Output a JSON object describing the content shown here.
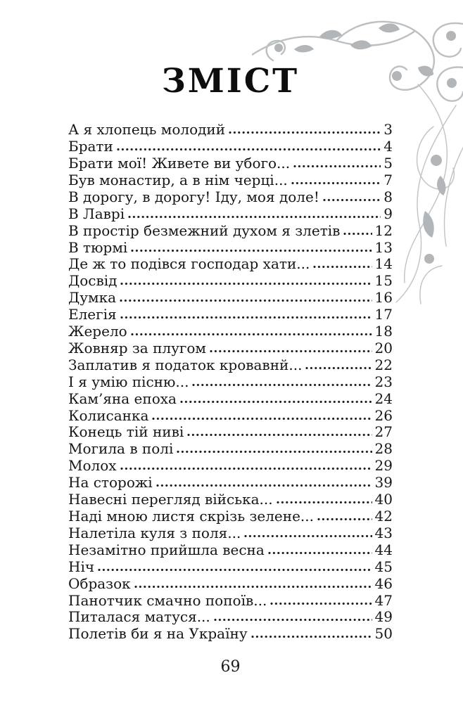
{
  "page": {
    "title": "ЗМІСТ",
    "footer_page_number": "69",
    "ornament": {
      "name": "floral-flourish-ornament",
      "color": "#b3b6b8"
    }
  },
  "toc": {
    "entries": [
      {
        "title": "А я хлопець молодий",
        "page": "3"
      },
      {
        "title": "Брати",
        "page": "4"
      },
      {
        "title": "Брати мої! Живете ви убого...",
        "page": "5"
      },
      {
        "title": "Був монастир, а в нім черці...",
        "page": "7"
      },
      {
        "title": "В дорогу, в дорогу! Іду, моя доле!",
        "page": "8"
      },
      {
        "title": "В Лаврі",
        "page": "9"
      },
      {
        "title": "В простір безмежний духом я злетів",
        "page": "12"
      },
      {
        "title": "В тюрмі",
        "page": "13"
      },
      {
        "title": "Де ж то подівся господар хати...",
        "page": "14"
      },
      {
        "title": "Досвід",
        "page": "15"
      },
      {
        "title": "Думка",
        "page": "16"
      },
      {
        "title": "Елегія",
        "page": "17"
      },
      {
        "title": "Жерело",
        "page": "18"
      },
      {
        "title": "Жовняр за плугом",
        "page": "20"
      },
      {
        "title": "Заплатив я податок кровавнй...",
        "page": "22"
      },
      {
        "title": "І я умію пісню...",
        "page": "23"
      },
      {
        "title": "Кам’яна епоха",
        "page": "24"
      },
      {
        "title": "Колисанка",
        "page": "26"
      },
      {
        "title": "Конець тій ниві",
        "page": "27"
      },
      {
        "title": "Могила в полі",
        "page": "28"
      },
      {
        "title": "Молох",
        "page": "29"
      },
      {
        "title": "На сторожі",
        "page": "39"
      },
      {
        "title": "Навесні перегляд війська...",
        "page": "40"
      },
      {
        "title": "Наді мною листя скрізь зелене...",
        "page": "42"
      },
      {
        "title": "Налетіла куля з поля...",
        "page": "43"
      },
      {
        "title": "Незамітно прийшла весна",
        "page": "44"
      },
      {
        "title": "Ніч",
        "page": "45"
      },
      {
        "title": "Образок",
        "page": "46"
      },
      {
        "title": "Панотчик смачно попоїв...",
        "page": "47"
      },
      {
        "title": "Питалася матуся...",
        "page": "49"
      },
      {
        "title": "Полетів би я на Україну",
        "page": "50"
      }
    ]
  }
}
